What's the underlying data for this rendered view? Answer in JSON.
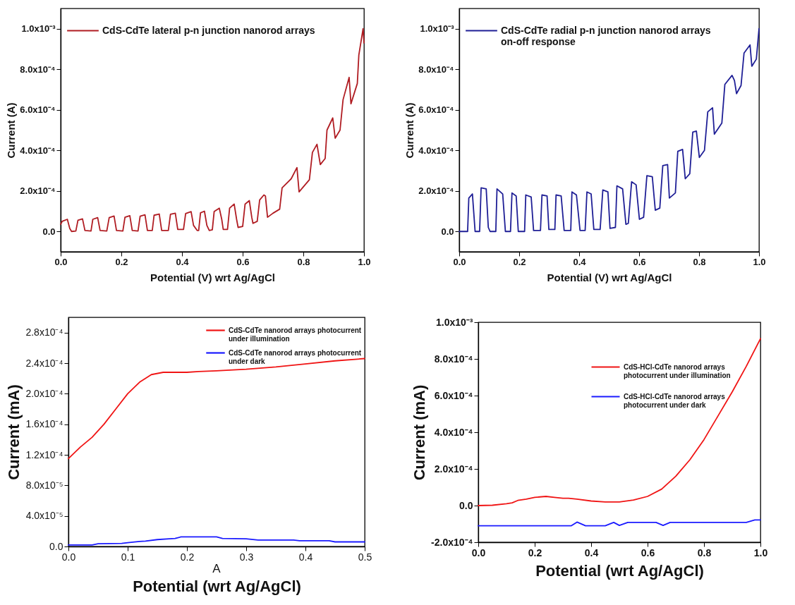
{
  "chart_data": [
    {
      "type": "line",
      "xlabel": "Potential (V) wrt Ag/AgCl",
      "ylabel": "Current (A)",
      "xlim": [
        0,
        1
      ],
      "ylim": [
        -0.0001,
        0.0011
      ],
      "xticks": [
        {
          "value": 0,
          "label": "0.0"
        },
        {
          "value": 0.2,
          "label": "0.2"
        },
        {
          "value": 0.4,
          "label": "0.4"
        },
        {
          "value": 0.6,
          "label": "0.6"
        },
        {
          "value": 0.8,
          "label": "0.8"
        },
        {
          "value": 1,
          "label": "1.0"
        }
      ],
      "yticks": [
        {
          "value": 0,
          "label": "0.0"
        },
        {
          "value": 0.0002,
          "label": "2.0x10⁻⁴"
        },
        {
          "value": 0.0004,
          "label": "4.0x10⁻⁴"
        },
        {
          "value": 0.0006,
          "label": "6.0x10⁻⁴"
        },
        {
          "value": 0.0008,
          "label": "8.0x10⁻⁴"
        },
        {
          "value": 0.001,
          "label": "1.0x10⁻³"
        }
      ],
      "legend": "top left",
      "series": [
        {
          "name": "CdS-CdTe lateral p-n junction nanorod arrays",
          "color": "#b01c22",
          "x": [
            0,
            0.005,
            0.022,
            0.03,
            0.036,
            0.05,
            0.057,
            0.072,
            0.08,
            0.1,
            0.106,
            0.122,
            0.13,
            0.152,
            0.16,
            0.176,
            0.184,
            0.205,
            0.212,
            0.228,
            0.236,
            0.255,
            0.262,
            0.278,
            0.286,
            0.302,
            0.308,
            0.325,
            0.333,
            0.355,
            0.362,
            0.378,
            0.386,
            0.405,
            0.412,
            0.43,
            0.438,
            0.45,
            0.455,
            0.461,
            0.474,
            0.482,
            0.49,
            0.5,
            0.506,
            0.523,
            0.531,
            0.536,
            0.55,
            0.557,
            0.572,
            0.58,
            0.585,
            0.6,
            0.608,
            0.622,
            0.63,
            0.634,
            0.648,
            0.656,
            0.67,
            0.675,
            0.682,
            0.7,
            0.722,
            0.73,
            0.76,
            0.779,
            0.786,
            0.82,
            0.83,
            0.845,
            0.856,
            0.872,
            0.878,
            0.897,
            0.905,
            0.921,
            0.931,
            0.951,
            0.957,
            0.978,
            0.983,
            0.997,
            1
          ],
          "values": [
            3.5e-05,
            5e-05,
            6e-05,
            1.5e-05,
            0,
            2e-06,
            5.5e-05,
            6.2e-05,
            5e-06,
            2e-06,
            6e-05,
            6.8e-05,
            5e-06,
            2e-06,
            6.8e-05,
            7.6e-05,
            5e-06,
            2e-06,
            7e-05,
            7.8e-05,
            5e-06,
            2e-06,
            7.5e-05,
            8.2e-05,
            5e-06,
            5e-06,
            8e-05,
            8.6e-05,
            5e-06,
            5e-06,
            8.5e-05,
            9e-05,
            1e-05,
            1e-05,
            8.8e-05,
            9.8e-05,
            3e-05,
            5e-06,
            5e-06,
            9.2e-05,
            0.0001,
            3e-05,
            5e-06,
            8e-06,
            9.8e-05,
            0.000115,
            6e-05,
            1e-05,
            1e-05,
            0.000115,
            0.000135,
            6e-05,
            2e-05,
            2.5e-05,
            0.000135,
            0.000152,
            7e-05,
            4e-05,
            5e-05,
            0.000155,
            0.00018,
            0.000175,
            7e-05,
            9e-05,
            0.00011,
            0.000215,
            0.00026,
            0.000315,
            0.000195,
            0.000255,
            0.00039,
            0.00043,
            0.00033,
            0.00036,
            0.0005,
            0.00056,
            0.00046,
            0.0005,
            0.00065,
            0.00076,
            0.00063,
            0.00073,
            0.00087,
            0.001,
            0.00093
          ]
        }
      ]
    },
    {
      "type": "line",
      "xlabel": "Potential (V) wrt Ag/AgCl",
      "ylabel": "Current (A)",
      "xlim": [
        0,
        1
      ],
      "ylim": [
        -0.0001,
        0.0011
      ],
      "xticks": [
        {
          "value": 0,
          "label": "0.0"
        },
        {
          "value": 0.2,
          "label": "0.2"
        },
        {
          "value": 0.4,
          "label": "0.4"
        },
        {
          "value": 0.6,
          "label": "0.6"
        },
        {
          "value": 0.8,
          "label": "0.8"
        },
        {
          "value": 1,
          "label": "1.0"
        }
      ],
      "yticks": [
        {
          "value": 0,
          "label": "0.0"
        },
        {
          "value": 0.0002,
          "label": "2.0x10⁻⁴"
        },
        {
          "value": 0.0004,
          "label": "4.0x10⁻⁴"
        },
        {
          "value": 0.0006,
          "label": "6.0x10⁻⁴"
        },
        {
          "value": 0.0008,
          "label": "8.0x10⁻⁴"
        },
        {
          "value": 0.001,
          "label": "1.0x10⁻³"
        }
      ],
      "legend": "top left",
      "series": [
        {
          "name": "CdS-CdTe radial p-n junction nanorod arrays on-off response",
          "color": "#1f1f96",
          "x": [
            0,
            0.028,
            0.032,
            0.044,
            0.053,
            0.068,
            0.073,
            0.09,
            0.097,
            0.103,
            0.122,
            0.126,
            0.145,
            0.154,
            0.171,
            0.176,
            0.19,
            0.197,
            0.218,
            0.222,
            0.24,
            0.248,
            0.271,
            0.276,
            0.293,
            0.299,
            0.319,
            0.323,
            0.34,
            0.35,
            0.372,
            0.376,
            0.391,
            0.403,
            0.42,
            0.426,
            0.44,
            0.449,
            0.47,
            0.479,
            0.496,
            0.503,
            0.521,
            0.526,
            0.545,
            0.556,
            0.564,
            0.575,
            0.59,
            0.601,
            0.615,
            0.626,
            0.644,
            0.654,
            0.669,
            0.679,
            0.695,
            0.701,
            0.721,
            0.729,
            0.745,
            0.754,
            0.769,
            0.779,
            0.791,
            0.801,
            0.818,
            0.829,
            0.845,
            0.851,
            0.876,
            0.886,
            0.91,
            0.918,
            0.925,
            0.94,
            0.95,
            0.97,
            0.976,
            0.991,
            1
          ],
          "values": [
            0,
            0,
            0.000165,
            0.000185,
            0,
            0,
            0.000215,
            0.00021,
            2e-05,
            0,
            0,
            0.00021,
            0.000185,
            0,
            0,
            0.00019,
            0.000175,
            0,
            0,
            0.00018,
            0.00017,
            5e-06,
            5e-06,
            0.00018,
            0.000175,
            1e-05,
            1e-05,
            0.00018,
            0.000175,
            5e-06,
            5e-06,
            0.000195,
            0.00018,
            5e-06,
            5e-06,
            0.000195,
            0.000185,
            1e-05,
            1e-05,
            0.000205,
            0.000195,
            1.5e-05,
            2e-05,
            0.000225,
            0.00021,
            3.5e-05,
            4e-05,
            0.000245,
            0.00023,
            6e-05,
            7e-05,
            0.000275,
            0.00027,
            0.000105,
            0.000115,
            0.000325,
            0.00033,
            0.000165,
            0.00019,
            0.000395,
            0.000405,
            0.00026,
            0.000285,
            0.00049,
            0.000495,
            0.000365,
            0.0004,
            0.00059,
            0.00061,
            0.00048,
            0.000535,
            0.000725,
            0.00077,
            0.000745,
            0.00068,
            0.00072,
            0.00088,
            0.00092,
            0.000815,
            0.00085,
            0.001
          ]
        }
      ]
    },
    {
      "type": "line",
      "xlabel": "Potential (wrt Ag/AgCl)",
      "ylabel": "Current (mA)",
      "xlim": [
        0,
        0.5
      ],
      "ylim": [
        0,
        0.0003
      ],
      "xticks": [
        {
          "value": 0,
          "label": "0.0"
        },
        0.1,
        0.2,
        0.3,
        0.4,
        0.5
      ],
      "yticks": [
        {
          "value": 0,
          "label": "0.0"
        },
        {
          "value": 4e-05,
          "label": "4.0x10⁻⁵"
        },
        {
          "value": 8e-05,
          "label": "8.0x10⁻⁵"
        },
        {
          "value": 0.00012,
          "label": "1.2x10⁻⁴"
        },
        {
          "value": 0.00016,
          "label": "1.6x10⁻⁴"
        },
        {
          "value": 0.0002,
          "label": "2.0x10⁻⁴"
        },
        {
          "value": 0.00024,
          "label": "2.4x10⁻⁴"
        },
        {
          "value": 0.00028,
          "label": "2.8x10⁻⁴"
        }
      ],
      "legend": "top right",
      "annotations": [
        "A"
      ],
      "series": [
        {
          "name": "CdS-CdTe nanorod arrays photocurrent under illumination",
          "color": "#f01414",
          "x": [
            0,
            0.02,
            0.04,
            0.06,
            0.08,
            0.1,
            0.12,
            0.14,
            0.16,
            0.2,
            0.22,
            0.25,
            0.3,
            0.35,
            0.4,
            0.45,
            0.5
          ],
          "values": [
            0.000115,
            0.00013,
            0.000143,
            0.00016,
            0.00018,
            0.0002,
            0.000215,
            0.000225,
            0.000228,
            0.000228,
            0.000229,
            0.00023,
            0.000232,
            0.000235,
            0.000239,
            0.000243,
            0.000246
          ]
        },
        {
          "name": "CdS-CdTe nanorod arrays photocurrent under dark",
          "color": "#1a1aff",
          "x": [
            0,
            0.04,
            0.05,
            0.09,
            0.1,
            0.12,
            0.13,
            0.15,
            0.17,
            0.18,
            0.19,
            0.25,
            0.26,
            0.3,
            0.32,
            0.38,
            0.39,
            0.44,
            0.45,
            0.5
          ],
          "values": [
            2e-06,
            2e-06,
            3.5e-06,
            4e-06,
            5e-06,
            6.5e-06,
            7e-06,
            9e-06,
            1e-05,
            1.05e-05,
            1.25e-05,
            1.25e-05,
            1.05e-05,
            1e-05,
            8.5e-06,
            8.5e-06,
            7.5e-06,
            7.5e-06,
            6e-06,
            6e-06
          ]
        }
      ]
    },
    {
      "type": "line",
      "xlabel": "Potential (wrt Ag/AgCl)",
      "ylabel": "Current (mA)",
      "xlim": [
        0,
        1
      ],
      "ylim": [
        -0.0002,
        0.001
      ],
      "xticks": [
        {
          "value": 0,
          "label": "0.0"
        },
        {
          "value": 0.2,
          "label": "0.2"
        },
        {
          "value": 0.4,
          "label": "0.4"
        },
        {
          "value": 0.6,
          "label": "0.6"
        },
        {
          "value": 0.8,
          "label": "0.8"
        },
        {
          "value": 1,
          "label": "1.0"
        }
      ],
      "yticks": [
        {
          "value": -0.0002,
          "label": "-2.0x10⁻⁴"
        },
        {
          "value": 0,
          "label": "0.0"
        },
        {
          "value": 0.0002,
          "label": "2.0x10⁻⁴"
        },
        {
          "value": 0.0004,
          "label": "4.0x10⁻⁴"
        },
        {
          "value": 0.0006,
          "label": "6.0x10⁻⁴"
        },
        {
          "value": 0.0008,
          "label": "8.0x10⁻⁴"
        },
        {
          "value": 0.001,
          "label": "1.0x10⁻³"
        }
      ],
      "legend": "top right",
      "series": [
        {
          "name": "CdS-HCl-CdTe nanorod arrays photocurrent under illumination",
          "color": "#f01414",
          "x": [
            0,
            0.05,
            0.1,
            0.12,
            0.14,
            0.17,
            0.2,
            0.24,
            0.27,
            0.3,
            0.32,
            0.35,
            0.4,
            0.45,
            0.5,
            0.55,
            0.6,
            0.65,
            0.7,
            0.75,
            0.8,
            0.85,
            0.9,
            0.95,
            1
          ],
          "values": [
            0,
            2e-06,
            1e-05,
            1.5e-05,
            2.8e-05,
            3.5e-05,
            4.5e-05,
            5e-05,
            4.5e-05,
            4e-05,
            4e-05,
            3.5e-05,
            2.5e-05,
            2e-05,
            2e-05,
            3e-05,
            5e-05,
            9e-05,
            0.00016,
            0.00025,
            0.00036,
            0.00049,
            0.00062,
            0.00076,
            0.00091
          ]
        },
        {
          "name": "CdS-HCl-CdTe nanorod arrays photocurrent under dark",
          "color": "#1a1aff",
          "x": [
            0,
            0.33,
            0.35,
            0.38,
            0.45,
            0.48,
            0.5,
            0.53,
            0.63,
            0.655,
            0.68,
            0.95,
            0.98,
            1
          ],
          "values": [
            -0.00011,
            -0.00011,
            -9e-05,
            -0.00011,
            -0.00011,
            -9.2e-05,
            -0.000108,
            -9.2e-05,
            -9.2e-05,
            -0.000108,
            -9.2e-05,
            -9.2e-05,
            -7.8e-05,
            -7.8e-05
          ]
        }
      ]
    }
  ]
}
